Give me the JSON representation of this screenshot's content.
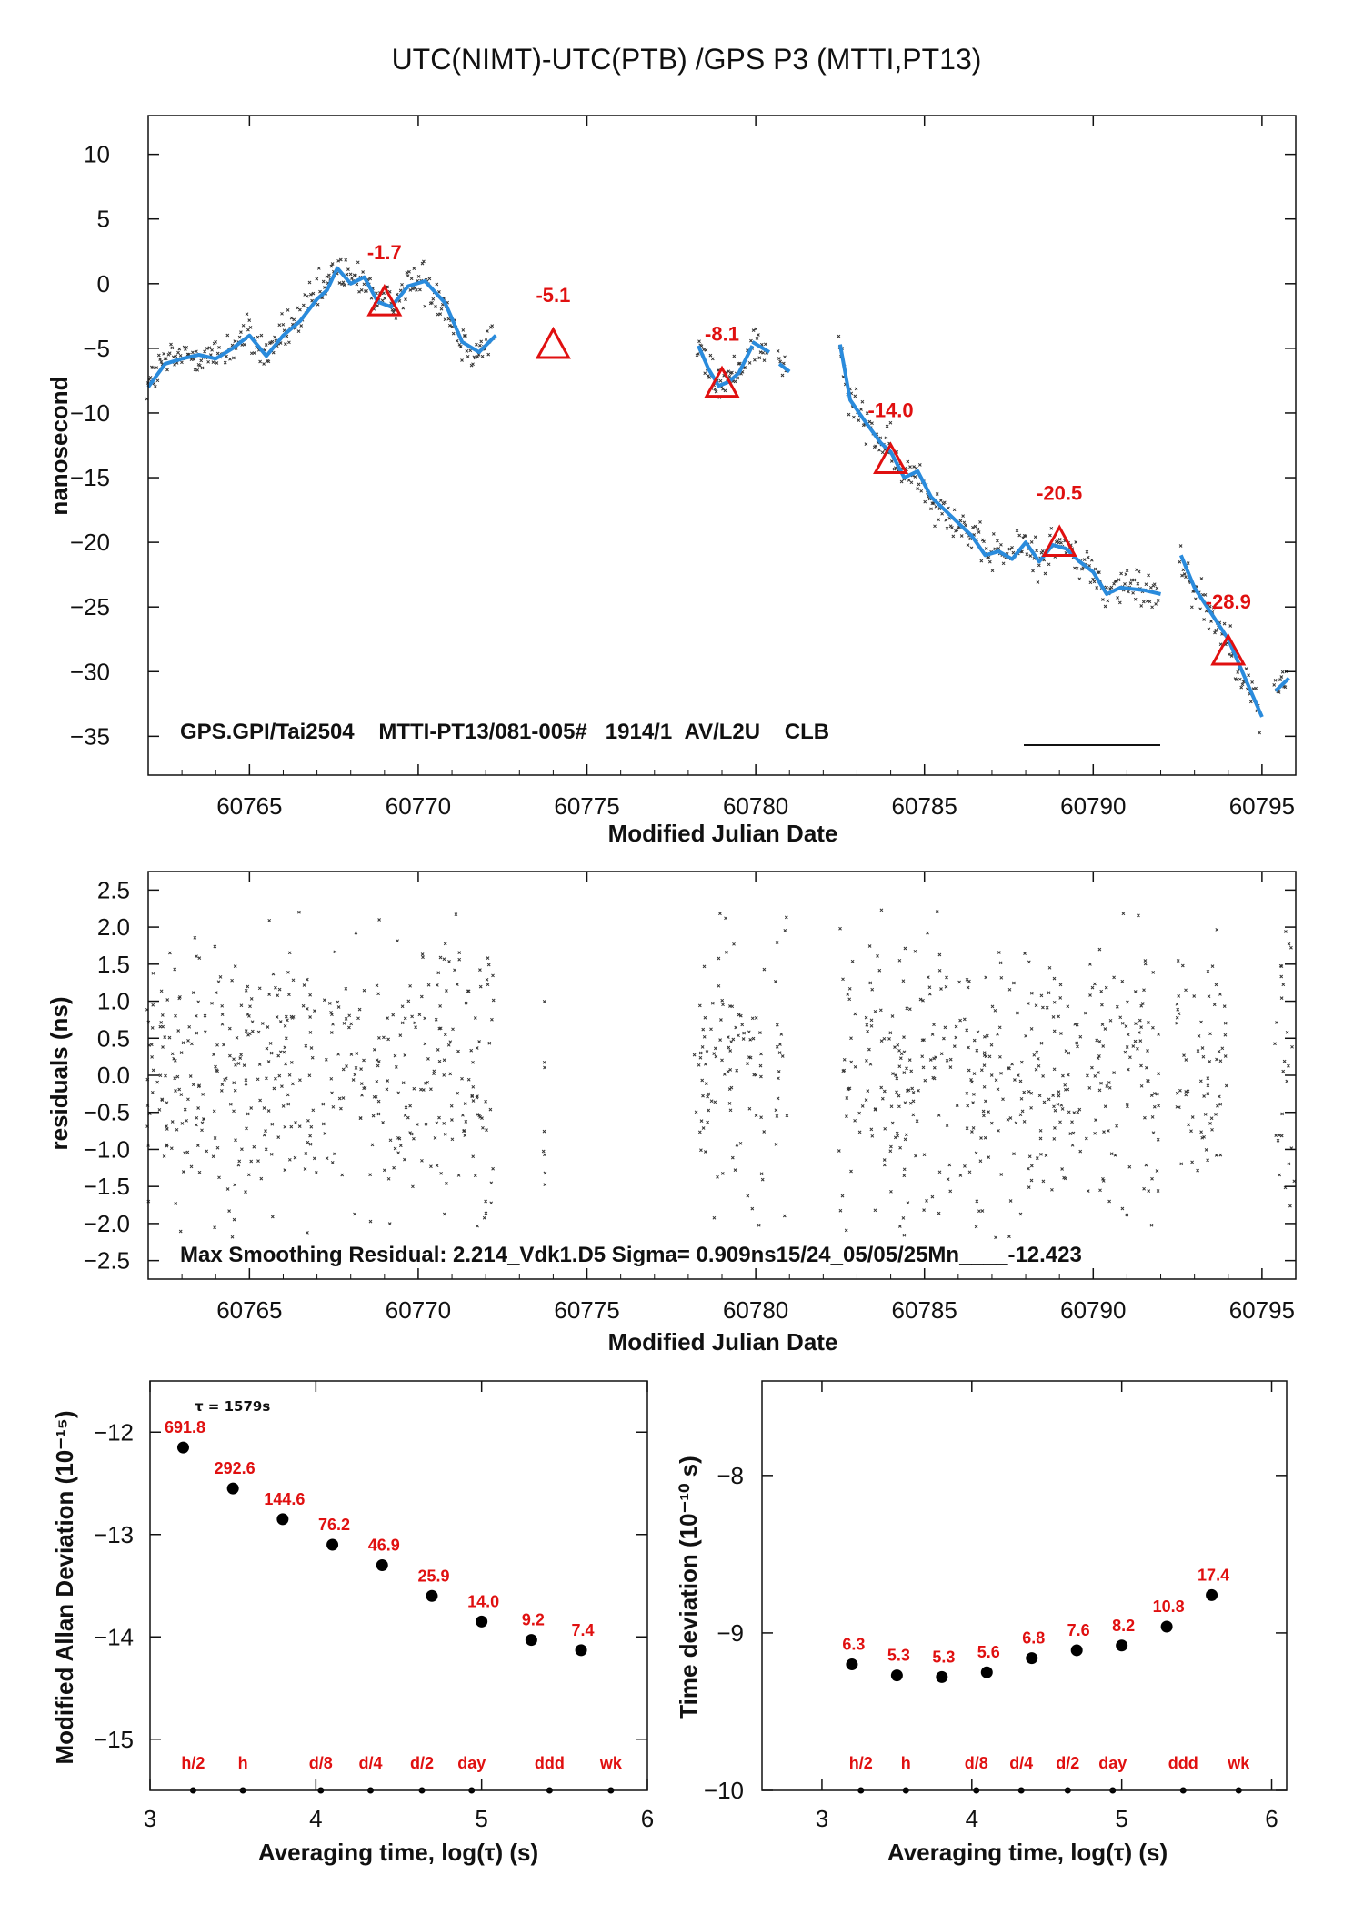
{
  "colors": {
    "fit": "#2a8bdc",
    "point": "#333333",
    "marker": "#e01010",
    "axis": "#111111"
  },
  "header": {
    "title": "UTC(NIMT)-UTC(PTB)  /GPS  P3  (MTTI,PT13)"
  },
  "chart_data": [
    {
      "type": "scatter",
      "xlabel": "Modified Julian Date",
      "ylabel": "nanosecond",
      "xlim": [
        60762,
        60796
      ],
      "ylim": [
        -38,
        13
      ],
      "xticks": [
        "60765",
        "60770",
        "60775",
        "60780",
        "60785",
        "60790",
        "60795"
      ],
      "yticks": [
        "10",
        "5",
        "0",
        "−5",
        "−10",
        "−15",
        "−20",
        "−25",
        "−30",
        "−35"
      ],
      "annotation": "GPS.GPI/Tai2504__MTTI-PT13/081-005#_  1914/1_AV/L2U__CLB__________",
      "series": [
        {
          "type": "line",
          "color": "#2a8bdc",
          "segments": [
            [
              [
                60762.0,
                -8.0
              ],
              [
                60762.5,
                -6.2
              ],
              [
                60763.0,
                -5.8
              ],
              [
                60763.5,
                -5.5
              ],
              [
                60764.0,
                -5.8
              ],
              [
                60764.5,
                -5.0
              ],
              [
                60765.0,
                -4.0
              ],
              [
                60765.5,
                -5.6
              ],
              [
                60766.0,
                -4.0
              ],
              [
                60766.5,
                -2.9
              ],
              [
                60767.0,
                -1.2
              ],
              [
                60767.3,
                -0.5
              ],
              [
                60767.6,
                1.2
              ],
              [
                60768.0,
                0.0
              ],
              [
                60768.4,
                0.5
              ],
              [
                60768.8,
                -1.4
              ],
              [
                60769.2,
                -1.8
              ],
              [
                60769.7,
                -0.2
              ],
              [
                60770.2,
                0.2
              ],
              [
                60770.8,
                -1.5
              ],
              [
                60771.3,
                -4.5
              ],
              [
                60771.8,
                -5.3
              ],
              [
                60772.3,
                -4.0
              ]
            ],
            [
              [
                60778.3,
                -4.8
              ],
              [
                60778.6,
                -6.6
              ],
              [
                60778.9,
                -7.9
              ],
              [
                60779.2,
                -7.6
              ],
              [
                60779.5,
                -6.9
              ],
              [
                60779.9,
                -4.8
              ]
            ],
            [
              [
                60779.9,
                -4.5
              ],
              [
                60780.4,
                -5.3
              ]
            ],
            [
              [
                60780.7,
                -6.2
              ],
              [
                60781.0,
                -6.8
              ]
            ],
            [
              [
                60782.5,
                -4.7
              ],
              [
                60782.8,
                -9.0
              ],
              [
                60783.2,
                -10.5
              ],
              [
                60783.7,
                -12.3
              ],
              [
                60784.0,
                -13.0
              ],
              [
                60784.4,
                -15.0
              ],
              [
                60784.8,
                -14.5
              ],
              [
                60785.2,
                -16.5
              ],
              [
                60785.6,
                -17.5
              ],
              [
                60786.0,
                -18.5
              ],
              [
                60786.4,
                -19.5
              ],
              [
                60786.8,
                -21.0
              ],
              [
                60787.2,
                -20.7
              ],
              [
                60787.6,
                -21.3
              ],
              [
                60788.0,
                -20.0
              ],
              [
                60788.4,
                -21.5
              ],
              [
                60788.8,
                -20.2
              ],
              [
                60789.2,
                -20.5
              ],
              [
                60789.6,
                -21.5
              ],
              [
                60790.0,
                -22.3
              ],
              [
                60790.4,
                -24.0
              ],
              [
                60790.8,
                -23.5
              ],
              [
                60791.5,
                -23.7
              ],
              [
                60792.0,
                -24.0
              ]
            ],
            [
              [
                60792.6,
                -21.0
              ],
              [
                60793.0,
                -23.5
              ],
              [
                60793.5,
                -25.5
              ],
              [
                60794.0,
                -27.5
              ],
              [
                60794.5,
                -30.5
              ],
              [
                60795.0,
                -33.5
              ]
            ],
            [
              [
                60795.4,
                -31.5
              ],
              [
                60795.8,
                -30.5
              ]
            ]
          ]
        },
        {
          "type": "scatter",
          "marker": "x",
          "color": "#333333",
          "note": "raw measurements scattered about fit line"
        }
      ],
      "markers": [
        {
          "x": 60769.0,
          "y": -1.5,
          "label": "-1.7"
        },
        {
          "x": 60774.0,
          "y": -4.8,
          "label": "-5.1"
        },
        {
          "x": 60779.0,
          "y": -7.8,
          "label": "-8.1"
        },
        {
          "x": 60784.0,
          "y": -13.7,
          "label": "-14.0"
        },
        {
          "x": 60789.0,
          "y": -20.1,
          "label": "-20.5"
        },
        {
          "x": 60794.0,
          "y": -28.5,
          "label": "-28.9"
        }
      ]
    },
    {
      "type": "scatter",
      "xlabel": "Modified Julian Date",
      "ylabel": "residuals (ns)",
      "xlim": [
        60762,
        60796
      ],
      "ylim": [
        -2.75,
        2.75
      ],
      "xticks": [
        "60765",
        "60770",
        "60775",
        "60780",
        "60785",
        "60790",
        "60795"
      ],
      "yticks": [
        "2.5",
        "2.0",
        "1.5",
        "1.0",
        "0.5",
        "0.0",
        "−0.5",
        "−1.0",
        "−1.5",
        "−2.0",
        "−2.5"
      ],
      "annotation": "Max Smoothing Residual: 2.214_Vdk1.D5  Sigma= 0.909ns15/24_05/05/25Mn____-12.423",
      "data_ranges": [
        [
          60762.0,
          60772.3
        ],
        [
          60773.7,
          60773.8
        ],
        [
          60778.2,
          60779.8
        ],
        [
          60779.8,
          60780.3
        ],
        [
          60780.6,
          60781.0
        ],
        [
          60782.5,
          60792.0
        ],
        [
          60792.5,
          60794.0
        ],
        [
          60795.4,
          60796.0
        ]
      ],
      "sigma": 0.909,
      "max_residual": 2.214
    },
    {
      "type": "scatter",
      "xlabel": "Averaging time, log(τ) (s)",
      "ylabel": "Modified Allan Deviation (10⁻¹⁵)",
      "xlim": [
        3,
        6
      ],
      "ylim": [
        -15.5,
        -11.5
      ],
      "xticks": [
        "3",
        "4",
        "5",
        "6"
      ],
      "yticks": [
        "−12",
        "−13",
        "−14",
        "−15"
      ],
      "tau_note": "τ = 1579s",
      "points": [
        {
          "x": 3.2,
          "y": -12.15,
          "label": "691.8"
        },
        {
          "x": 3.5,
          "y": -12.55,
          "label": "292.6"
        },
        {
          "x": 3.8,
          "y": -12.85,
          "label": "144.6"
        },
        {
          "x": 4.1,
          "y": -13.1,
          "label": "76.2"
        },
        {
          "x": 4.4,
          "y": -13.3,
          "label": "46.9"
        },
        {
          "x": 4.7,
          "y": -13.6,
          "label": "25.9"
        },
        {
          "x": 5.0,
          "y": -13.85,
          "label": "14.0"
        },
        {
          "x": 5.3,
          "y": -14.03,
          "label": "9.2"
        },
        {
          "x": 5.6,
          "y": -14.13,
          "label": "7.4"
        }
      ],
      "period_labels": [
        {
          "x": 3.26,
          "label": "h/2"
        },
        {
          "x": 3.56,
          "label": "h"
        },
        {
          "x": 4.03,
          "label": "d/8"
        },
        {
          "x": 4.33,
          "label": "d/4"
        },
        {
          "x": 4.64,
          "label": "d/2"
        },
        {
          "x": 4.94,
          "label": "day"
        },
        {
          "x": 5.41,
          "label": "ddd"
        },
        {
          "x": 5.78,
          "label": "wk"
        }
      ]
    },
    {
      "type": "scatter",
      "xlabel": "Averaging time, log(τ) (s)",
      "ylabel": "Time deviation (10⁻¹⁰ s)",
      "xlim": [
        2.6,
        6.1
      ],
      "ylim": [
        -10,
        -7.4
      ],
      "xticks": [
        "3",
        "4",
        "5",
        "6"
      ],
      "yticks": [
        "−8",
        "−9",
        "−10"
      ],
      "points": [
        {
          "x": 3.2,
          "y": -9.2,
          "label": "6.3"
        },
        {
          "x": 3.5,
          "y": -9.27,
          "label": "5.3"
        },
        {
          "x": 3.8,
          "y": -9.28,
          "label": "5.3"
        },
        {
          "x": 4.1,
          "y": -9.25,
          "label": "5.6"
        },
        {
          "x": 4.4,
          "y": -9.16,
          "label": "6.8"
        },
        {
          "x": 4.7,
          "y": -9.11,
          "label": "7.6"
        },
        {
          "x": 5.0,
          "y": -9.08,
          "label": "8.2"
        },
        {
          "x": 5.3,
          "y": -8.96,
          "label": "10.8"
        },
        {
          "x": 5.6,
          "y": -8.76,
          "label": "17.4"
        }
      ],
      "period_labels": [
        {
          "x": 3.26,
          "label": "h/2"
        },
        {
          "x": 3.56,
          "label": "h"
        },
        {
          "x": 4.03,
          "label": "d/8"
        },
        {
          "x": 4.33,
          "label": "d/4"
        },
        {
          "x": 4.64,
          "label": "d/2"
        },
        {
          "x": 4.94,
          "label": "day"
        },
        {
          "x": 5.41,
          "label": "ddd"
        },
        {
          "x": 5.78,
          "label": "wk"
        }
      ]
    }
  ]
}
